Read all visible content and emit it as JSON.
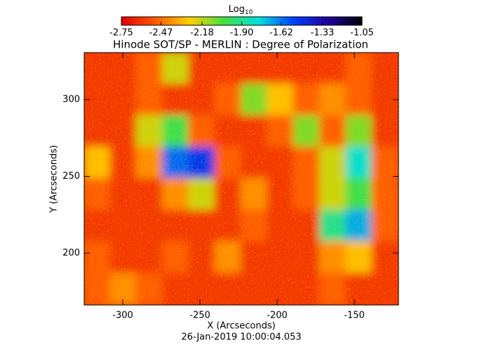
{
  "chart_data": {
    "type": "heatmap",
    "title": "Hinode SOT/SP - MERLIN : Degree of Polarization",
    "xlabel": "X (Arcseconds)",
    "ylabel": "Y (Arcseconds)",
    "annotation": "26-Jan-2019 10:00:04.053",
    "colorbar_label": "Log",
    "colorbar_label_sub": "10",
    "colorbar_lim": [
      -2.75,
      -1.05
    ],
    "colorbar_ticks": [
      -2.75,
      -2.47,
      -2.18,
      {
        "value": -1.9,
        "label": "-1.90"
      },
      -1.62,
      -1.33,
      -1.05
    ],
    "colormap": [
      "#e00000",
      "#ff5a00",
      "#ffd000",
      "#40e040",
      "#00e0e0",
      "#0040ff",
      "#2000a0",
      "#000000"
    ],
    "xlim": [
      -325,
      -121.4
    ],
    "ylim": [
      166.2,
      330.6
    ],
    "xticks": [
      -300,
      -250,
      -200,
      -150
    ],
    "yticks": [
      200,
      250,
      300
    ],
    "z": [
      [
        -2.6,
        -2.6,
        -2.5,
        -2.2,
        -2.6,
        -2.6,
        -2.6,
        -2.6,
        -2.6,
        -2.6,
        -2.5,
        -2.6
      ],
      [
        -2.6,
        -2.6,
        -2.5,
        -2.6,
        -2.6,
        -2.5,
        -2.1,
        -2.3,
        -2.5,
        -2.4,
        -2.5,
        -2.6
      ],
      [
        -2.6,
        -2.6,
        -2.2,
        -2.0,
        -2.5,
        -2.6,
        -2.6,
        -2.5,
        -2.1,
        -2.5,
        -2.1,
        -2.6
      ],
      [
        -2.3,
        -2.6,
        -2.4,
        -1.6,
        -1.5,
        -2.5,
        -2.6,
        -2.6,
        -2.5,
        -2.2,
        -1.8,
        -2.5
      ],
      [
        -2.5,
        -2.6,
        -2.6,
        -2.4,
        -2.2,
        -2.6,
        -2.4,
        -2.6,
        -2.5,
        -2.2,
        -2.0,
        -2.5
      ],
      [
        -2.6,
        -2.6,
        -2.6,
        -2.6,
        -2.6,
        -2.6,
        -2.5,
        -2.6,
        -2.6,
        -1.9,
        -1.7,
        -2.5
      ],
      [
        -2.5,
        -2.6,
        -2.6,
        -2.5,
        -2.6,
        -2.4,
        -2.6,
        -2.6,
        -2.6,
        -2.4,
        -2.3,
        -2.6
      ],
      [
        -2.5,
        -2.4,
        -2.5,
        -2.6,
        -2.6,
        -2.6,
        -2.6,
        -2.6,
        -2.6,
        -2.5,
        -2.6,
        -2.6
      ]
    ]
  }
}
